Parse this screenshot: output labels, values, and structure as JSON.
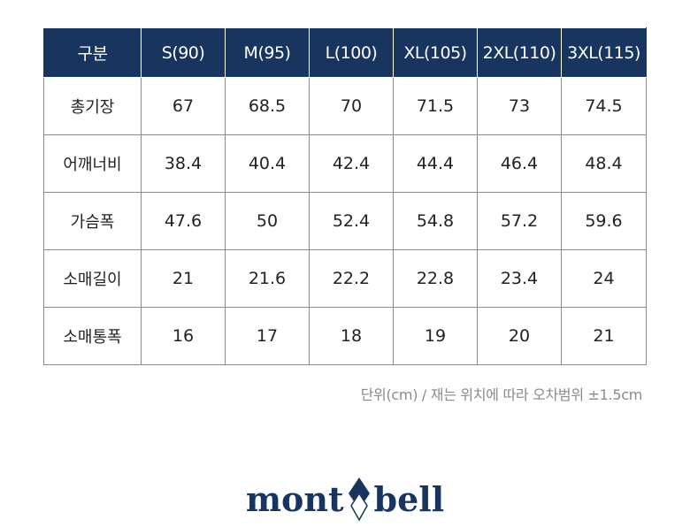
{
  "colors": {
    "header_bg": "#17355e",
    "header_text": "#ffffff",
    "grid": "#8a8a8a",
    "note_text": "#8a8a8a",
    "brand": "#17355e"
  },
  "table": {
    "corner_label": "구분",
    "sizes": [
      "S(90)",
      "M(95)",
      "L(100)",
      "XL(105)",
      "2XL(110)",
      "3XL(115)"
    ],
    "rows": [
      {
        "label": "총기장",
        "values": [
          "67",
          "68.5",
          "70",
          "71.5",
          "73",
          "74.5"
        ]
      },
      {
        "label": "어깨너비",
        "values": [
          "38.4",
          "40.4",
          "42.4",
          "44.4",
          "46.4",
          "48.4"
        ]
      },
      {
        "label": "가슴폭",
        "values": [
          "47.6",
          "50",
          "52.4",
          "54.8",
          "57.2",
          "59.6"
        ]
      },
      {
        "label": "소매길이",
        "values": [
          "21",
          "21.6",
          "22.2",
          "22.8",
          "23.4",
          "24"
        ]
      },
      {
        "label": "소매통폭",
        "values": [
          "16",
          "17",
          "18",
          "19",
          "20",
          "21"
        ]
      }
    ]
  },
  "note": "단위(cm) / 재는 위치에 따라 오차범위 ±1.5cm",
  "logo": {
    "left_text": "mont",
    "right_text": "bell",
    "mark_icon": "diamond-icon"
  }
}
